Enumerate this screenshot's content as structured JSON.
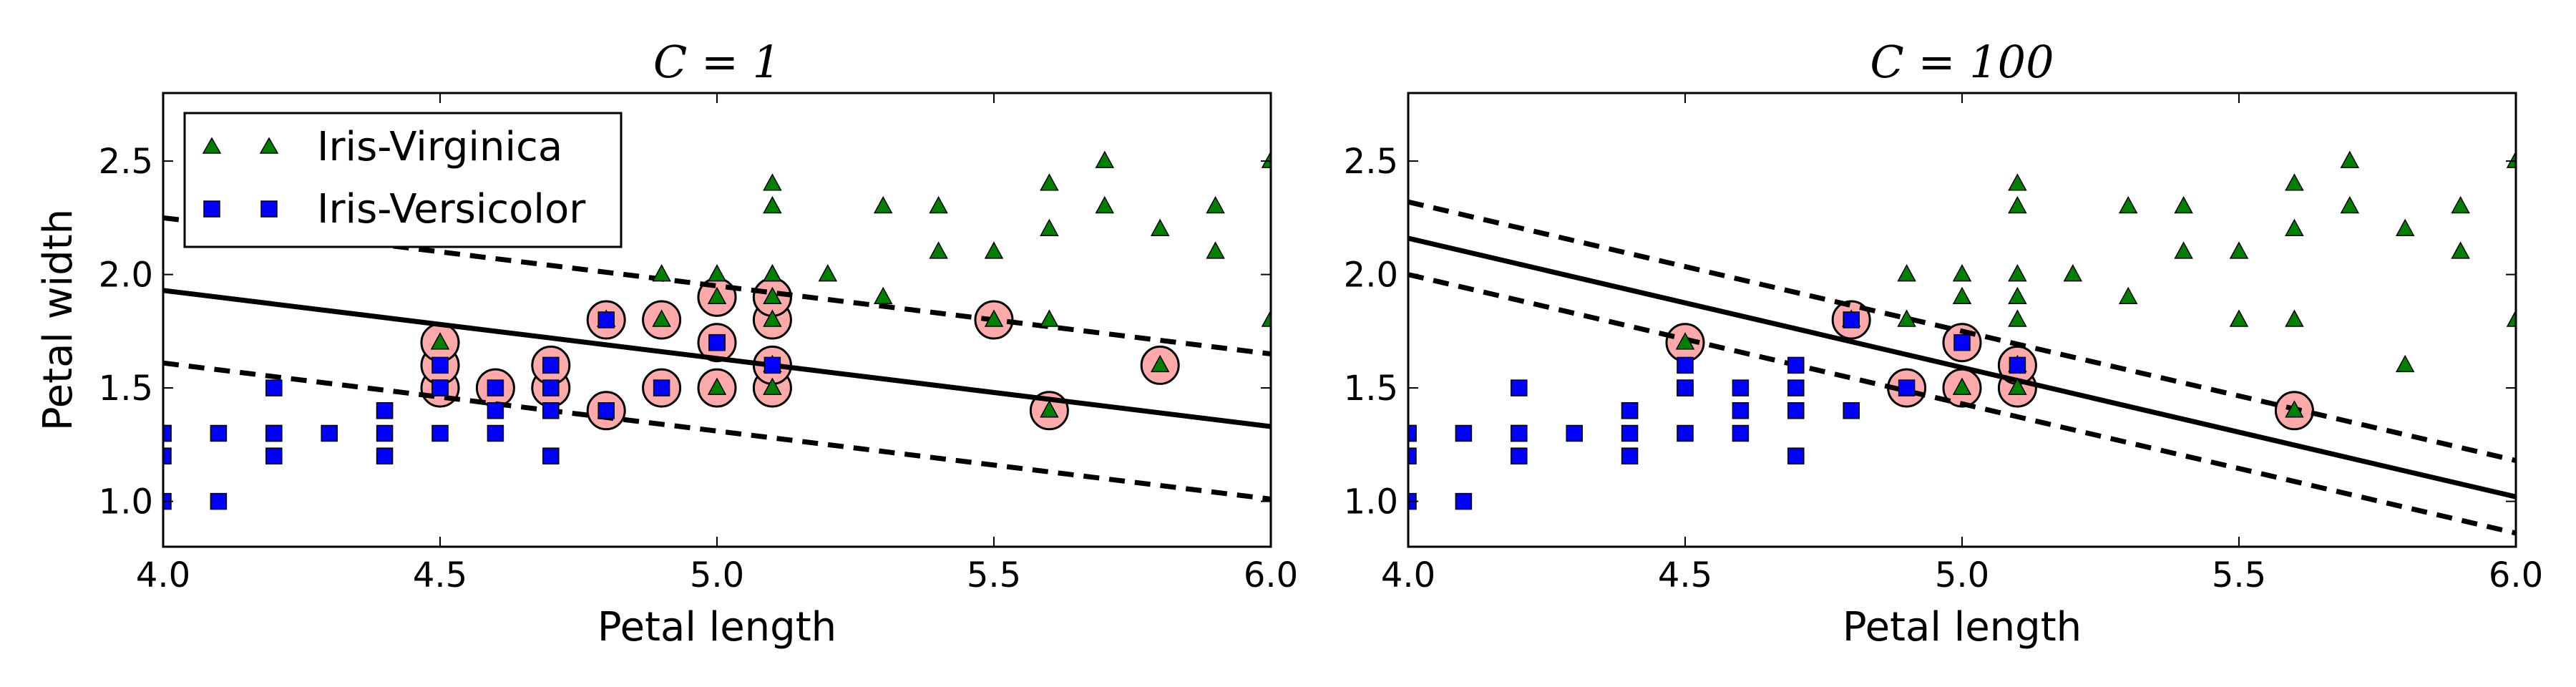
{
  "colors": {
    "virginica": "#008000",
    "versicolor": "#0000ff",
    "support_vector_fill": "#ffaaaa",
    "line": "#000000"
  },
  "legend": {
    "location": "upper-left",
    "entries": [
      {
        "label": "Iris-Virginica",
        "marker": "triangle-icon"
      },
      {
        "label": "Iris-Versicolor",
        "marker": "square-icon"
      }
    ]
  },
  "chart_data": [
    {
      "type": "scatter",
      "title": "C = 1",
      "xlabel": "Petal length",
      "ylabel": "Petal width",
      "xlim": [
        4.0,
        6.0
      ],
      "ylim": [
        0.8,
        2.8
      ],
      "xticks": [
        "4.0",
        "4.5",
        "5.0",
        "5.5",
        "6.0"
      ],
      "yticks": [
        "1.0",
        "1.5",
        "2.0",
        "2.5"
      ],
      "grid": false,
      "series": [
        {
          "name": "Iris-Virginica",
          "marker": "triangle",
          "x": [
            4.5,
            4.8,
            4.9,
            4.9,
            5.0,
            5.0,
            5.1,
            5.1,
            5.1,
            5.1,
            5.1,
            5.1,
            5.1,
            5.2,
            5.3,
            5.3,
            5.4,
            5.4,
            5.5,
            5.5,
            5.6,
            5.6,
            5.6,
            5.6,
            5.7,
            5.7,
            5.8,
            5.8,
            5.9,
            5.9,
            6.0,
            6.0,
            5.0,
            5.1
          ],
          "y": [
            1.7,
            1.8,
            1.8,
            2.0,
            1.5,
            2.0,
            1.5,
            1.8,
            1.9,
            2.0,
            2.3,
            2.4,
            1.6,
            2.0,
            1.9,
            2.3,
            2.1,
            2.3,
            1.8,
            2.1,
            1.4,
            1.8,
            2.2,
            2.4,
            2.3,
            2.5,
            1.6,
            2.2,
            2.1,
            2.3,
            1.8,
            2.5,
            1.9,
            2.0
          ]
        },
        {
          "name": "Iris-Versicolor",
          "marker": "square",
          "x": [
            4.0,
            4.0,
            4.0,
            4.0,
            4.1,
            4.1,
            4.2,
            4.2,
            4.2,
            4.2,
            4.3,
            4.4,
            4.4,
            4.4,
            4.4,
            4.5,
            4.5,
            4.5,
            4.5,
            4.6,
            4.6,
            4.6,
            4.7,
            4.7,
            4.7,
            4.7,
            4.8,
            4.8,
            4.9,
            5.0,
            5.0,
            5.1
          ],
          "y": [
            1.0,
            1.2,
            1.3,
            1.3,
            1.0,
            1.3,
            1.2,
            1.3,
            1.3,
            1.5,
            1.3,
            1.2,
            1.3,
            1.4,
            1.4,
            1.3,
            1.5,
            1.5,
            1.6,
            1.3,
            1.4,
            1.5,
            1.2,
            1.4,
            1.5,
            1.6,
            1.4,
            1.8,
            1.5,
            1.7,
            1.7,
            1.6
          ]
        }
      ],
      "decision_boundary": {
        "x": [
          4.0,
          6.0
        ],
        "y": [
          1.93,
          1.33
        ]
      },
      "margin_upper": {
        "x": [
          4.0,
          6.0
        ],
        "y": [
          2.25,
          1.65
        ]
      },
      "margin_lower": {
        "x": [
          4.0,
          6.0
        ],
        "y": [
          1.61,
          1.01
        ]
      },
      "support_vectors": {
        "x": [
          4.5,
          4.5,
          4.5,
          4.6,
          4.7,
          4.7,
          4.8,
          4.8,
          4.9,
          4.9,
          5.0,
          5.0,
          5.0,
          5.0,
          5.1,
          5.1,
          5.1,
          5.1,
          5.1,
          5.5,
          5.6,
          5.8
        ],
        "y": [
          1.5,
          1.6,
          1.7,
          1.5,
          1.5,
          1.6,
          1.4,
          1.8,
          1.5,
          1.8,
          1.5,
          1.7,
          1.9,
          1.9,
          1.5,
          1.6,
          1.8,
          1.9,
          1.9,
          1.8,
          1.4,
          1.6
        ]
      }
    },
    {
      "type": "scatter",
      "title": "C = 100",
      "xlabel": "Petal length",
      "ylabel": "",
      "xlim": [
        4.0,
        6.0
      ],
      "ylim": [
        0.8,
        2.8
      ],
      "xticks": [
        "4.0",
        "4.5",
        "5.0",
        "5.5",
        "6.0"
      ],
      "yticks": [
        "1.0",
        "1.5",
        "2.0",
        "2.5"
      ],
      "grid": false,
      "series": [
        {
          "name": "Iris-Virginica",
          "marker": "triangle",
          "x": [
            4.5,
            4.8,
            4.9,
            4.9,
            5.0,
            5.0,
            5.1,
            5.1,
            5.1,
            5.1,
            5.1,
            5.1,
            5.1,
            5.2,
            5.3,
            5.3,
            5.4,
            5.4,
            5.5,
            5.5,
            5.6,
            5.6,
            5.6,
            5.6,
            5.7,
            5.7,
            5.8,
            5.8,
            5.9,
            5.9,
            6.0,
            6.0,
            5.0
          ],
          "y": [
            1.7,
            1.8,
            1.8,
            2.0,
            1.5,
            2.0,
            1.5,
            1.8,
            1.9,
            2.0,
            2.3,
            2.4,
            1.6,
            2.0,
            1.9,
            2.3,
            2.1,
            2.3,
            1.8,
            2.1,
            1.4,
            1.8,
            2.2,
            2.4,
            2.3,
            2.5,
            1.6,
            2.2,
            2.1,
            2.3,
            1.8,
            2.5,
            1.9
          ]
        },
        {
          "name": "Iris-Versicolor",
          "marker": "square",
          "x": [
            4.0,
            4.0,
            4.0,
            4.0,
            4.1,
            4.1,
            4.2,
            4.2,
            4.2,
            4.2,
            4.3,
            4.4,
            4.4,
            4.4,
            4.4,
            4.5,
            4.5,
            4.5,
            4.5,
            4.6,
            4.6,
            4.6,
            4.7,
            4.7,
            4.7,
            4.7,
            4.8,
            4.8,
            4.9,
            5.0,
            5.1
          ],
          "y": [
            1.0,
            1.2,
            1.3,
            1.3,
            1.0,
            1.3,
            1.2,
            1.3,
            1.3,
            1.5,
            1.3,
            1.2,
            1.3,
            1.4,
            1.4,
            1.3,
            1.5,
            1.5,
            1.6,
            1.3,
            1.4,
            1.5,
            1.2,
            1.4,
            1.5,
            1.6,
            1.4,
            1.8,
            1.5,
            1.7,
            1.6
          ]
        }
      ],
      "decision_boundary": {
        "x": [
          4.0,
          6.0
        ],
        "y": [
          2.16,
          1.02
        ]
      },
      "margin_upper": {
        "x": [
          4.0,
          6.0
        ],
        "y": [
          2.32,
          1.18
        ]
      },
      "margin_lower": {
        "x": [
          4.0,
          6.0
        ],
        "y": [
          2.0,
          0.86
        ]
      },
      "support_vectors": {
        "x": [
          4.5,
          4.8,
          4.9,
          5.0,
          5.0,
          5.1,
          5.1,
          5.6
        ],
        "y": [
          1.7,
          1.8,
          1.5,
          1.5,
          1.7,
          1.5,
          1.6,
          1.4
        ]
      }
    }
  ]
}
